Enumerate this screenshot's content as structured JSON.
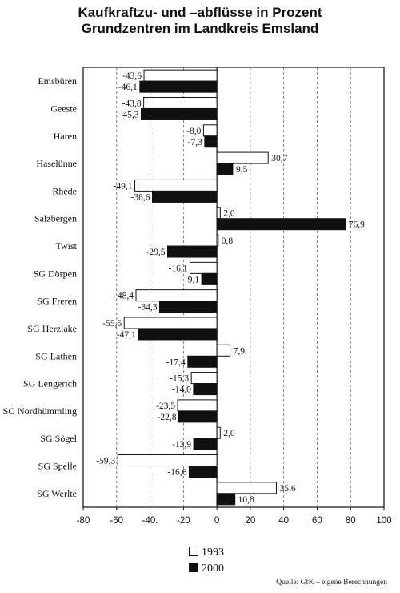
{
  "chart_data": {
    "type": "bar",
    "orientation": "horizontal",
    "title": "Kaufkraftzu- und –abflüsse in Prozent",
    "subtitle": "Grundzentren im Landkreis Emsland",
    "categories": [
      "Emsbüren",
      "Geeste",
      "Haren",
      "Haselünne",
      "Rhede",
      "Salzbergen",
      "Twist",
      "SG Dörpen",
      "SG Freren",
      "SG Herzlake",
      "SG Lathen",
      "SG Lengerich",
      "SG Nordhümmling",
      "SG Sögel",
      "SG Spelle",
      "SG Werlte"
    ],
    "series": [
      {
        "name": "1993",
        "color": "#ffffff",
        "values": [
          -43.6,
          -43.8,
          -8.0,
          30.7,
          -49.1,
          2.0,
          0.8,
          -16.1,
          -48.4,
          -55.5,
          7.9,
          -15.3,
          -23.5,
          2.0,
          -59.3,
          35.6
        ],
        "labels": [
          "-43,6",
          "-43,8",
          "-8,0",
          "30,7",
          "-49,1",
          "2,0",
          "0,8",
          "-16,1",
          "-48,4",
          "-55,5",
          "7,9",
          "-15,3",
          "-23,5",
          "2,0",
          "-59,3",
          "35,6"
        ]
      },
      {
        "name": "2000",
        "color": "#111111",
        "values": [
          -46.1,
          -45.3,
          -7.3,
          9.5,
          -38.6,
          76.9,
          -29.5,
          -9.1,
          -34.3,
          -47.1,
          -17.4,
          -14.0,
          -22.8,
          -13.9,
          -16.6,
          10.8
        ],
        "labels": [
          "-46,1",
          "-45,3",
          "-7,3",
          "9,5",
          "-38,6",
          "76,9",
          "-29,5",
          "-9,1",
          "-34,3",
          "-47,1",
          "-17,4",
          "-14,0",
          "-22,8",
          "-13,9",
          "-16,6",
          "10,8"
        ]
      }
    ],
    "xlim": [
      -80,
      100
    ],
    "xticks": [
      -80,
      -60,
      -40,
      -20,
      0,
      20,
      40,
      60,
      80,
      100
    ],
    "xtick_labels": [
      "-80",
      "-60",
      "-40.",
      "-20",
      "0",
      "20",
      "40",
      "60",
      "80",
      "100"
    ],
    "grid": "vertical dashed",
    "legend": "bottom-center",
    "source": "Quelle: GfK – eigene Berechnungen"
  }
}
